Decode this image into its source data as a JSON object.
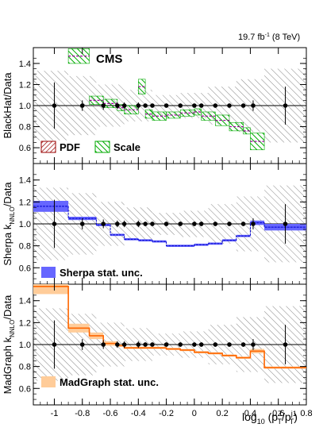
{
  "figure": {
    "lumi_label": "19.7 fb",
    "lumi_sup": "-1",
    "energy_label": " (8 TeV)",
    "experiment": "CMS",
    "xlabel_main": "log",
    "xlabel_sub10": "10",
    "xlabel_paren": " (p",
    "xlabel_sup_z": "Z",
    "xlabel_slash": "/p",
    "xlabel_sup_j": "j1",
    "xlabel_sub_t": "T",
    "xlabel_close": ")"
  },
  "colors": {
    "pdf_hatch": "#990000",
    "scale_hatch": "#00aa00",
    "pdf_line": "#990099",
    "sherpa_fill": "#6666ff",
    "sherpa_line": "#0000cc",
    "madgraph_fill": "#ffcc99",
    "madgraph_line": "#ff6600",
    "data_unc_hatch": "#555555"
  },
  "chart_data": [
    {
      "type": "bar",
      "panel": "blackhat",
      "ylabel": "BlackHat/Data",
      "ylim": [
        0.45,
        1.55
      ],
      "xlim": [
        -1.15,
        0.8
      ],
      "yticks": [
        "0.6",
        "0.8",
        "1.0",
        "1.2",
        "1.4"
      ],
      "xticks": [
        "-1",
        "-0.8",
        "-0.6",
        "-0.4",
        "-0.2",
        "0",
        "0.2",
        "0.4",
        "0.6",
        "0.8"
      ],
      "bin_edges": [
        -1.15,
        -0.9,
        -0.75,
        -0.65,
        -0.55,
        -0.5,
        -0.4,
        -0.35,
        -0.3,
        -0.2,
        -0.1,
        0.0,
        0.05,
        0.15,
        0.25,
        0.35,
        0.4,
        0.5,
        0.8
      ],
      "legend": [
        {
          "label": "PDF",
          "style": "pdf-hatch"
        },
        {
          "label": "Scale",
          "style": "scale-hatch"
        }
      ],
      "series": [
        {
          "values": [
            null,
            1.47,
            1.05,
            1.02,
            0.98,
            0.96,
            1.18,
            0.92,
            0.9,
            0.91,
            0.93,
            0.94,
            0.9,
            0.86,
            0.8,
            0.76,
            0.66,
            null
          ],
          "scale_unc": [
            null,
            0.07,
            0.04,
            0.04,
            0.03,
            0.04,
            0.07,
            0.04,
            0.04,
            0.03,
            0.03,
            0.03,
            0.04,
            0.05,
            0.04,
            0.03,
            0.08,
            null
          ]
        }
      ],
      "data_points": {
        "x": [
          -1.0,
          -0.8,
          -0.65,
          -0.55,
          -0.5,
          -0.4,
          -0.35,
          -0.3,
          -0.2,
          -0.1,
          0.0,
          0.05,
          0.15,
          0.25,
          0.35,
          0.42,
          0.65
        ],
        "y": [
          1.0,
          1.0,
          1.0,
          1.0,
          1.0,
          1.0,
          1.0,
          1.0,
          1.0,
          1.0,
          1.0,
          1.0,
          1.0,
          1.0,
          1.0,
          1.0,
          1.0
        ],
        "err": [
          0.22,
          0.05,
          0.04,
          0.03,
          0.03,
          0.03,
          0.02,
          0.02,
          0.02,
          0.02,
          0.02,
          0.02,
          0.02,
          0.02,
          0.02,
          0.05,
          0.18
        ]
      },
      "data_unc_band": {
        "edges": [
          -1.15,
          -0.9,
          -0.7,
          -0.5,
          -0.3,
          -0.1,
          0.1,
          0.3,
          0.5,
          0.8
        ],
        "half_width": [
          0.33,
          0.28,
          0.2,
          0.15,
          0.1,
          0.12,
          0.18,
          0.25,
          0.35
        ]
      }
    },
    {
      "type": "bar",
      "panel": "sherpa",
      "ylabel": "Sherpa k",
      "ylabel_sub": "NNLO",
      "ylabel_tail": "/Data",
      "ylim": [
        0.45,
        1.55
      ],
      "yticks": [
        "0.6",
        "0.8",
        "1.0",
        "1.2",
        "1.4"
      ],
      "legend": [
        {
          "label": "Sherpa stat. unc.",
          "style": "sherpa-fill"
        }
      ],
      "series": [
        {
          "bin_edges": [
            -1.15,
            -0.9,
            -0.7,
            -0.6,
            -0.5,
            -0.4,
            -0.3,
            -0.2,
            0.0,
            0.1,
            0.2,
            0.3,
            0.4,
            0.5,
            0.8
          ],
          "values": [
            1.16,
            1.05,
            0.99,
            0.9,
            0.86,
            0.85,
            0.84,
            0.8,
            0.81,
            0.82,
            0.85,
            0.89,
            1.01,
            0.97
          ],
          "stat_unc": [
            0.05,
            0.015,
            0.01,
            0.01,
            0.01,
            0.01,
            0.01,
            0.01,
            0.01,
            0.01,
            0.01,
            0.01,
            0.02,
            0.03
          ]
        }
      ],
      "data_points": {
        "x": [
          -1.0,
          -0.8,
          -0.65,
          -0.55,
          -0.5,
          -0.4,
          -0.35,
          -0.3,
          -0.2,
          -0.1,
          0.0,
          0.05,
          0.15,
          0.25,
          0.35,
          0.42,
          0.65
        ],
        "y": [
          1.0,
          1.0,
          1.0,
          1.0,
          1.0,
          1.0,
          1.0,
          1.0,
          1.0,
          1.0,
          1.0,
          1.0,
          1.0,
          1.0,
          1.0,
          1.0,
          1.0
        ],
        "err": [
          0.22,
          0.05,
          0.04,
          0.03,
          0.03,
          0.03,
          0.02,
          0.02,
          0.02,
          0.02,
          0.02,
          0.02,
          0.02,
          0.02,
          0.02,
          0.05,
          0.18
        ]
      }
    },
    {
      "type": "bar",
      "panel": "madgraph",
      "ylabel": "MadGraph k",
      "ylabel_sub": "NNLO",
      "ylabel_tail": "/Data",
      "ylim": [
        0.45,
        1.55
      ],
      "yticks": [
        "0.6",
        "0.8",
        "1.0",
        "1.2",
        "1.4"
      ],
      "legend": [
        {
          "label": "MadGraph stat. unc.",
          "style": "madgraph-fill"
        }
      ],
      "series": [
        {
          "bin_edges": [
            -1.15,
            -0.9,
            -0.75,
            -0.65,
            -0.55,
            -0.5,
            -0.4,
            -0.3,
            -0.2,
            -0.1,
            0.0,
            0.1,
            0.2,
            0.3,
            0.4,
            0.5,
            0.8
          ],
          "values": [
            1.53,
            1.15,
            1.08,
            1.01,
            0.99,
            0.97,
            0.97,
            0.97,
            0.96,
            0.95,
            0.93,
            0.92,
            0.9,
            0.88,
            0.94,
            0.79
          ],
          "stat_unc": [
            0.07,
            0.04,
            0.03,
            0.02,
            0.01,
            0.01,
            0.01,
            0.01,
            0.01,
            0.01,
            0.01,
            0.01,
            0.01,
            0.01,
            0.02,
            0.01
          ]
        }
      ],
      "data_points": {
        "x": [
          -1.0,
          -0.8,
          -0.65,
          -0.55,
          -0.5,
          -0.4,
          -0.35,
          -0.3,
          -0.2,
          -0.1,
          0.0,
          0.05,
          0.15,
          0.25,
          0.35,
          0.42,
          0.65
        ],
        "y": [
          1.0,
          1.0,
          1.0,
          1.0,
          1.0,
          1.0,
          1.0,
          1.0,
          1.0,
          1.0,
          1.0,
          1.0,
          1.0,
          1.0,
          1.0,
          1.0,
          1.0
        ],
        "err": [
          0.22,
          0.05,
          0.04,
          0.03,
          0.03,
          0.03,
          0.02,
          0.02,
          0.02,
          0.02,
          0.02,
          0.02,
          0.02,
          0.02,
          0.02,
          0.05,
          0.18
        ]
      }
    }
  ]
}
